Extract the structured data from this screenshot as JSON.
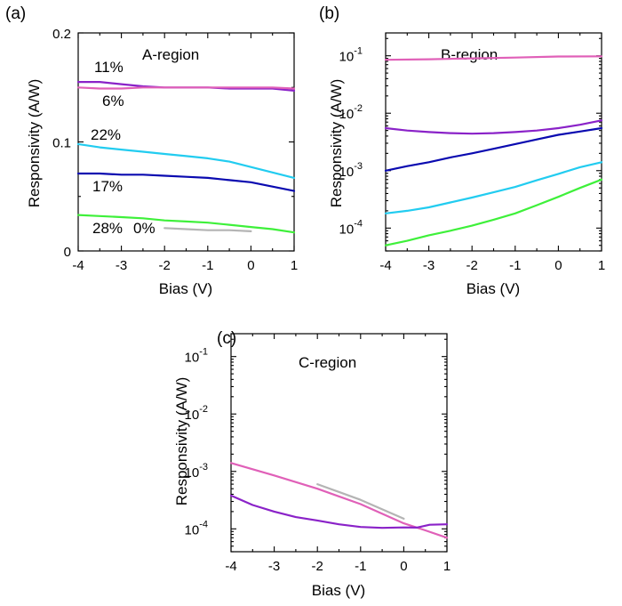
{
  "colors": {
    "11%": "#8a22c8",
    "6%": "#e060b8",
    "22%": "#22ccf0",
    "17%": "#0a0ab0",
    "28%": "#3ef03a",
    "0%": "#b4b4b4"
  },
  "chart_data": [
    {
      "type": "line",
      "panel_label": "(a)",
      "title": "A-region",
      "xlabel": "Bias (V)",
      "ylabel": "Responsivity (A/W)",
      "xlim": [
        -4,
        1
      ],
      "ylim": [
        0,
        0.2
      ],
      "yscale": "linear",
      "xticks": [
        "-4",
        "-3",
        "-2",
        "-1",
        "0",
        "1"
      ],
      "yticks": [
        {
          "value": 0,
          "label": "0"
        },
        {
          "value": 0.1,
          "label": "0.1"
        },
        {
          "value": 0.2,
          "label": "0.2"
        }
      ],
      "series": [
        {
          "name": "11%",
          "x": [
            -4,
            -3.5,
            -3,
            -2.5,
            -2,
            -1.5,
            -1,
            -0.5,
            0,
            0.5,
            1
          ],
          "y": [
            0.155,
            0.155,
            0.153,
            0.151,
            0.15,
            0.15,
            0.15,
            0.149,
            0.149,
            0.149,
            0.147
          ]
        },
        {
          "name": "6%",
          "x": [
            -4,
            -3.5,
            -3,
            -2.5,
            -2,
            -1.5,
            -1,
            -0.5,
            0,
            0.5,
            1
          ],
          "y": [
            0.15,
            0.149,
            0.149,
            0.15,
            0.15,
            0.15,
            0.15,
            0.15,
            0.15,
            0.15,
            0.149
          ]
        },
        {
          "name": "22%",
          "x": [
            -4,
            -3.5,
            -3,
            -2.5,
            -2,
            -1.5,
            -1,
            -0.5,
            0,
            0.5,
            1
          ],
          "y": [
            0.098,
            0.095,
            0.093,
            0.091,
            0.089,
            0.087,
            0.085,
            0.082,
            0.077,
            0.072,
            0.067
          ]
        },
        {
          "name": "17%",
          "x": [
            -4,
            -3.5,
            -3,
            -2.5,
            -2,
            -1.5,
            -1,
            -0.5,
            0,
            0.5,
            1
          ],
          "y": [
            0.071,
            0.071,
            0.07,
            0.07,
            0.069,
            0.068,
            0.067,
            0.065,
            0.063,
            0.059,
            0.055
          ]
        },
        {
          "name": "28%",
          "x": [
            -4,
            -3.5,
            -3,
            -2.5,
            -2,
            -1.5,
            -1,
            -0.5,
            0,
            0.5,
            1
          ],
          "y": [
            0.033,
            0.032,
            0.031,
            0.03,
            0.028,
            0.027,
            0.026,
            0.024,
            0.022,
            0.02,
            0.017
          ]
        },
        {
          "name": "0%",
          "x": [
            -2,
            -1.5,
            -1,
            -0.5,
            0
          ],
          "y": [
            0.021,
            0.02,
            0.019,
            0.019,
            0.018
          ]
        }
      ],
      "annotations": [
        {
          "text": "11%",
          "series": "11%"
        },
        {
          "text": "6%",
          "series": "6%"
        },
        {
          "text": "22%",
          "series": "22%"
        },
        {
          "text": "17%",
          "series": "17%"
        },
        {
          "text": "28%",
          "series": "28%"
        },
        {
          "text": "0%",
          "series": "0%"
        }
      ]
    },
    {
      "type": "line",
      "panel_label": "(b)",
      "title": "B-region",
      "xlabel": "Bias (V)",
      "ylabel": "Responsivity (A/W)",
      "xlim": [
        -4,
        1
      ],
      "ylim": [
        4e-05,
        0.25
      ],
      "yscale": "log",
      "xticks": [
        "-4",
        "-3",
        "-2",
        "-1",
        "0",
        "1"
      ],
      "yticks": [
        {
          "value": 0.0001,
          "base": "10",
          "exp": "-4"
        },
        {
          "value": 0.001,
          "base": "10",
          "exp": "-3"
        },
        {
          "value": 0.01,
          "base": "10",
          "exp": "-2"
        },
        {
          "value": 0.1,
          "base": "10",
          "exp": "-1"
        }
      ],
      "series": [
        {
          "name": "6%",
          "x": [
            -4,
            -3,
            -2,
            -1,
            0,
            1
          ],
          "y": [
            0.085,
            0.087,
            0.09,
            0.093,
            0.097,
            0.098
          ]
        },
        {
          "name": "11%",
          "x": [
            -4,
            -3.5,
            -3,
            -2.5,
            -2,
            -1.5,
            -1,
            -0.5,
            0,
            0.5,
            1
          ],
          "y": [
            0.0055,
            0.005,
            0.0047,
            0.0045,
            0.0044,
            0.0045,
            0.0047,
            0.005,
            0.0055,
            0.0063,
            0.0075
          ]
        },
        {
          "name": "17%",
          "x": [
            -4,
            -3.5,
            -3,
            -2.5,
            -2,
            -1.5,
            -1,
            -0.5,
            0,
            0.5,
            1
          ],
          "y": [
            0.001,
            0.0012,
            0.0014,
            0.0017,
            0.002,
            0.0024,
            0.0029,
            0.0035,
            0.0042,
            0.0048,
            0.0055
          ]
        },
        {
          "name": "22%",
          "x": [
            -4,
            -3.5,
            -3,
            -2.5,
            -2,
            -1.5,
            -1,
            -0.5,
            0,
            0.5,
            1
          ],
          "y": [
            0.00018,
            0.0002,
            0.00023,
            0.00028,
            0.00034,
            0.00042,
            0.00052,
            0.00068,
            0.00088,
            0.00115,
            0.0014
          ]
        },
        {
          "name": "28%",
          "x": [
            -4,
            -3.5,
            -3,
            -2.5,
            -2,
            -1.5,
            -1,
            -0.5,
            0,
            0.5,
            1
          ],
          "y": [
            5e-05,
            6e-05,
            7.5e-05,
            9e-05,
            0.00011,
            0.00014,
            0.00018,
            0.00025,
            0.00035,
            0.0005,
            0.0007
          ]
        }
      ]
    },
    {
      "type": "line",
      "panel_label": "(c)",
      "title": "C-region",
      "xlabel": "Bias (V)",
      "ylabel": "Responsivity (A/W)",
      "xlim": [
        -4,
        1
      ],
      "ylim": [
        4e-05,
        0.25
      ],
      "yscale": "log",
      "xticks": [
        "-4",
        "-3",
        "-2",
        "-1",
        "0",
        "1"
      ],
      "yticks": [
        {
          "value": 0.0001,
          "base": "10",
          "exp": "-4"
        },
        {
          "value": 0.001,
          "base": "10",
          "exp": "-3"
        },
        {
          "value": 0.01,
          "base": "10",
          "exp": "-2"
        },
        {
          "value": 0.1,
          "base": "10",
          "exp": "-1"
        }
      ],
      "series": [
        {
          "name": "6%",
          "x": [
            -4,
            -3,
            -2,
            -1,
            0,
            0.5,
            1
          ],
          "y": [
            0.0014,
            0.00085,
            0.0005,
            0.00027,
            0.000125,
            9.4e-05,
            7e-05
          ]
        },
        {
          "name": "11%",
          "x": [
            -4,
            -3.5,
            -3,
            -2.5,
            -2,
            -1.5,
            -1,
            -0.5,
            0,
            0.3,
            0.6,
            1
          ],
          "y": [
            0.00038,
            0.00026,
            0.0002,
            0.00016,
            0.00014,
            0.00012,
            0.000108,
            0.000104,
            0.000106,
            0.000105,
            0.000118,
            0.00012
          ]
        },
        {
          "name": "0%",
          "x": [
            -2,
            -1,
            0
          ],
          "y": [
            0.0006,
            0.00032,
            0.00015
          ]
        }
      ]
    }
  ]
}
